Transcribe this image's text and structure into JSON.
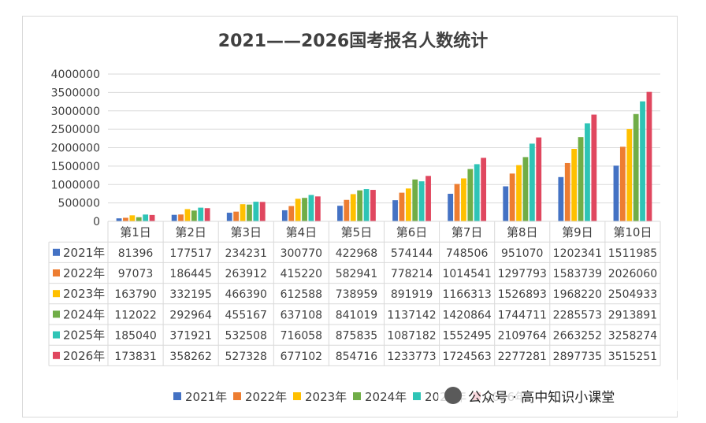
{
  "chart_data": {
    "type": "bar",
    "title": "2021——2026国考报名人数统计",
    "categories": [
      "第1日",
      "第2日",
      "第3日",
      "第4日",
      "第5日",
      "第6日",
      "第7日",
      "第8日",
      "第9日",
      "第10日"
    ],
    "ylim": [
      0,
      4000000
    ],
    "yticks": [
      0,
      500000,
      1000000,
      1500000,
      2000000,
      2500000,
      3000000,
      3500000,
      4000000
    ],
    "grid": true,
    "legend_position": "bottom",
    "data_table": true,
    "series": [
      {
        "name": "2021年",
        "color": "#4472C4",
        "values": [
          81396,
          177517,
          234231,
          300770,
          422968,
          574144,
          748506,
          951070,
          1202341,
          1511985
        ]
      },
      {
        "name": "2022年",
        "color": "#ED7D31",
        "values": [
          97073,
          186445,
          263912,
          415220,
          582941,
          778214,
          1014541,
          1297793,
          1583739,
          2026060
        ]
      },
      {
        "name": "2023年",
        "color": "#FFC000",
        "values": [
          163790,
          332195,
          466390,
          612588,
          738959,
          891919,
          1166313,
          1526893,
          1968220,
          2504933
        ]
      },
      {
        "name": "2024年",
        "color": "#70AD47",
        "values": [
          112022,
          292964,
          455167,
          637108,
          841019,
          1137142,
          1420864,
          1744711,
          2285573,
          2913891
        ]
      },
      {
        "name": "2025年",
        "color": "#2EC4B6",
        "values": [
          185040,
          371921,
          532508,
          716058,
          875835,
          1087182,
          1552495,
          2109764,
          2663252,
          3258274
        ]
      },
      {
        "name": "2026年",
        "color": "#E0475F",
        "values": [
          173831,
          358262,
          527328,
          677102,
          854716,
          1233773,
          1724563,
          2277281,
          2897735,
          3515251
        ]
      }
    ]
  },
  "watermark": {
    "text": "公众号 · 高中知识小课堂"
  }
}
